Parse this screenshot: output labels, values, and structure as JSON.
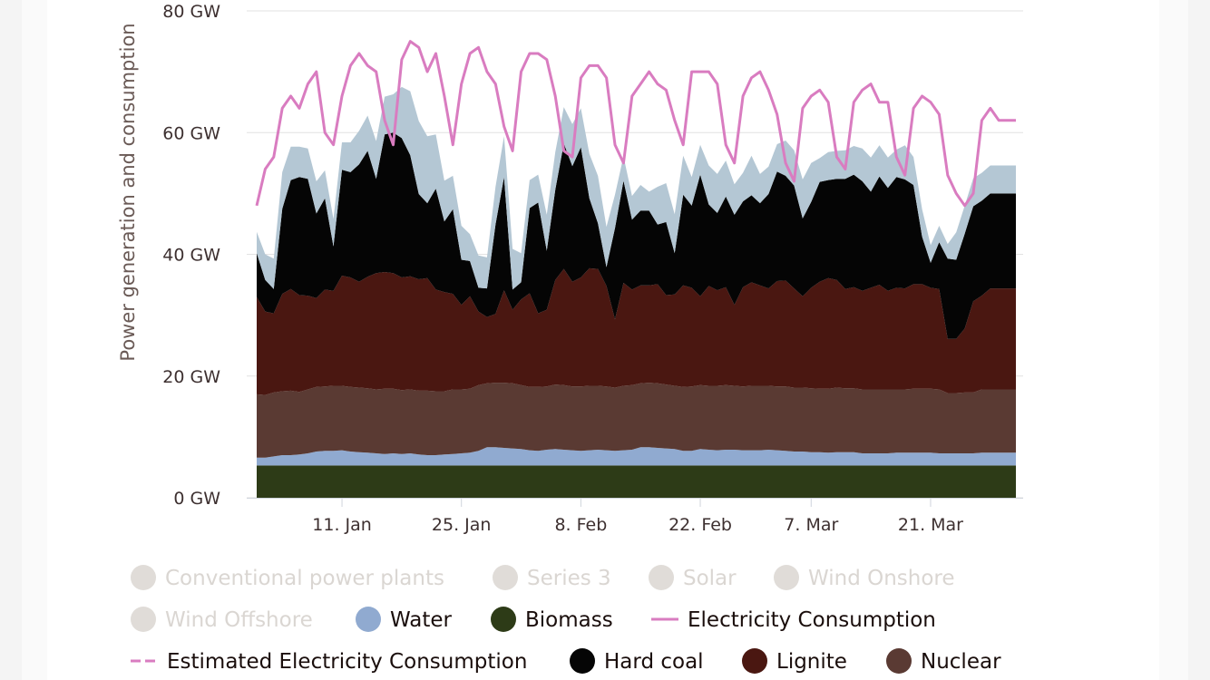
{
  "chart_data": {
    "type": "area",
    "title": "",
    "ylabel": "Power generation and consumption",
    "ylim": [
      0,
      80
    ],
    "yticks": [
      "0 GW",
      "20 GW",
      "40 GW",
      "60 GW",
      "80 GW"
    ],
    "ytick_values": [
      0,
      20,
      40,
      60,
      80
    ],
    "xticks": [
      "11. Jan",
      "25. Jan",
      "8. Feb",
      "22. Feb",
      "7. Mar",
      "21. Mar"
    ],
    "xtick_days": [
      11,
      25,
      39,
      53,
      66,
      80
    ],
    "x_days": [
      1,
      2,
      3,
      4,
      5,
      6,
      7,
      8,
      9,
      10,
      11,
      12,
      13,
      14,
      15,
      16,
      17,
      18,
      19,
      20,
      21,
      22,
      23,
      24,
      25,
      26,
      27,
      28,
      29,
      30,
      31,
      32,
      33,
      34,
      35,
      36,
      37,
      38,
      39,
      40,
      41,
      42,
      43,
      44,
      45,
      46,
      47,
      48,
      49,
      50,
      51,
      52,
      53,
      54,
      55,
      56,
      57,
      58,
      59,
      60,
      61,
      62,
      63,
      64,
      65,
      66,
      67,
      68,
      69,
      70,
      71,
      72,
      73,
      74,
      75,
      76,
      77,
      78,
      79,
      80,
      81,
      82,
      83,
      84,
      85,
      86,
      87,
      88,
      89,
      90
    ],
    "series": [
      {
        "name": "Biomass",
        "color": "#2d3b17",
        "values": [
          5.3,
          5.3,
          5.3,
          5.3,
          5.3,
          5.3,
          5.3,
          5.3,
          5.3,
          5.3,
          5.3,
          5.3,
          5.3,
          5.3,
          5.3,
          5.3,
          5.3,
          5.3,
          5.3,
          5.3,
          5.3,
          5.3,
          5.3,
          5.3,
          5.3,
          5.3,
          5.3,
          5.3,
          5.3,
          5.3,
          5.3,
          5.3,
          5.3,
          5.3,
          5.3,
          5.3,
          5.3,
          5.3,
          5.3,
          5.3,
          5.3,
          5.3,
          5.3,
          5.3,
          5.3,
          5.3,
          5.3,
          5.3,
          5.3,
          5.3,
          5.3,
          5.3,
          5.3,
          5.3,
          5.3,
          5.3,
          5.3,
          5.3,
          5.3,
          5.3,
          5.3,
          5.3,
          5.3,
          5.3,
          5.3,
          5.3,
          5.3,
          5.3,
          5.3,
          5.3,
          5.3,
          5.3,
          5.3,
          5.3,
          5.3,
          5.3,
          5.3,
          5.3,
          5.3,
          5.3,
          5.3,
          5.3,
          5.3,
          5.3,
          5.3,
          5.3,
          5.3,
          5.3,
          5.3,
          5.3
        ]
      },
      {
        "name": "Water",
        "color": "#90aad0",
        "values": [
          1.3,
          1.3,
          1.5,
          1.7,
          1.7,
          1.8,
          2,
          2.3,
          2.4,
          2.4,
          2.5,
          2.3,
          2.2,
          2.1,
          2,
          1.9,
          2,
          1.9,
          2,
          1.8,
          1.7,
          1.7,
          1.8,
          1.9,
          2,
          2.1,
          2.4,
          3,
          3,
          2.9,
          2.8,
          2.7,
          2.5,
          2.4,
          2.6,
          2.7,
          2.6,
          2.5,
          2.4,
          2.5,
          2.6,
          2.5,
          2.4,
          2.5,
          2.6,
          3,
          3,
          2.9,
          2.8,
          2.7,
          2.4,
          2.4,
          2.7,
          2.6,
          2.5,
          2.6,
          2.6,
          2.5,
          2.5,
          2.5,
          2.6,
          2.5,
          2.4,
          2.3,
          2.3,
          2.2,
          2.2,
          2.1,
          2.2,
          2.2,
          2.2,
          2,
          2,
          2,
          2,
          2.1,
          2.1,
          2.1,
          2.1,
          2.1,
          2,
          2,
          2,
          2,
          2,
          2.1,
          2.1,
          2.1,
          2.1,
          2.1
        ]
      },
      {
        "name": "Nuclear",
        "color": "#5a3a33",
        "values": [
          10.4,
          10.3,
          10.5,
          10.5,
          10.6,
          10.3,
          10.5,
          10.6,
          10.6,
          10.7,
          10.6,
          10.6,
          10.6,
          10.6,
          10.5,
          10.7,
          10.6,
          10.5,
          10.5,
          10.5,
          10.6,
          10.5,
          10.4,
          10.6,
          10.5,
          10.5,
          10.8,
          10.5,
          10.6,
          10.7,
          10.7,
          10.5,
          10.4,
          10.5,
          10.4,
          10.6,
          10.6,
          10.5,
          10.6,
          10.6,
          10.5,
          10.5,
          10.4,
          10.6,
          10.6,
          10.5,
          10.6,
          10.6,
          10.5,
          10.4,
          10.5,
          10.6,
          10.5,
          10.5,
          10.6,
          10.6,
          10.5,
          10.5,
          10.6,
          10.6,
          10.5,
          10.5,
          10.6,
          10.5,
          10.5,
          10.5,
          10.4,
          10.5,
          10.6,
          10.5,
          10.5,
          10.5,
          10.5,
          10.5,
          10.5,
          10.4,
          10.4,
          10.5,
          10.5,
          10.5,
          10.5,
          9.9,
          9.9,
          10,
          10,
          10.4,
          10.4,
          10.4,
          10.4,
          10.4
        ]
      },
      {
        "name": "Lignite",
        "color": "#4a1711",
        "values": [
          16,
          13.7,
          13,
          16,
          16.7,
          15.9,
          15.4,
          14.6,
          15.9,
          15.6,
          18.1,
          18,
          17.4,
          18.3,
          19.1,
          19.2,
          19,
          18.5,
          18.6,
          18.3,
          18.5,
          16.7,
          16.3,
          15.7,
          13.9,
          15.2,
          12.1,
          10.9,
          11.3,
          15.2,
          12.1,
          14.1,
          15.4,
          12.1,
          12.6,
          17.2,
          19.1,
          17.2,
          17.9,
          19.3,
          19.2,
          16.5,
          11.2,
          16.9,
          15.7,
          16.1,
          16,
          16.3,
          14.7,
          15,
          16.7,
          16.2,
          14.6,
          16.4,
          15.7,
          16.1,
          13.3,
          16.3,
          17,
          16.5,
          16,
          17.3,
          17.4,
          16.3,
          15,
          16.5,
          17.6,
          18.2,
          17.7,
          16.3,
          16.6,
          16.2,
          16.7,
          17.2,
          16.2,
          16.7,
          16.6,
          17.2,
          17.2,
          16.6,
          16.5,
          8.9,
          8.9,
          10.5,
          15,
          15.4,
          16.6,
          16.6,
          16.6,
          16.6
        ]
      },
      {
        "name": "Hard coal",
        "color": "#050505",
        "values": [
          7.2,
          5.2,
          4,
          14,
          17.9,
          19.4,
          19.2,
          13.9,
          15,
          7.3,
          17.4,
          17.3,
          19.3,
          20.7,
          15.5,
          22.6,
          23.1,
          22.9,
          19.9,
          14,
          12.3,
          16.6,
          11.6,
          13.9,
          7.4,
          5.8,
          3.9,
          4.7,
          14.7,
          18.6,
          3.3,
          2.8,
          14,
          18.2,
          9.7,
          14.8,
          20.6,
          19,
          21.4,
          11.5,
          7.5,
          3.1,
          15,
          16.8,
          11.5,
          12.3,
          12.3,
          9.8,
          12,
          6.8,
          14.9,
          13.5,
          20,
          13.4,
          12.7,
          14.9,
          14.8,
          14.1,
          14.3,
          13.5,
          15.5,
          18,
          17.2,
          16.9,
          12.8,
          14.1,
          16.4,
          16.1,
          16.6,
          18.1,
          18.5,
          18,
          15.8,
          17.8,
          16.9,
          18.2,
          17.9,
          16.3,
          7.8,
          4.1,
          7.7,
          13.2,
          13,
          15.6,
          15.6,
          15.6,
          15.6,
          15.6,
          15.6,
          15.6
        ]
      },
      {
        "name": "Wind Offshore",
        "color": "#b4c7d4",
        "values": [
          3.5,
          4.2,
          5,
          6,
          5.5,
          5,
          5,
          5.3,
          4.6,
          4.5,
          4.5,
          4.9,
          5.5,
          5.8,
          6.2,
          6.2,
          6.3,
          8.4,
          10.5,
          12,
          11,
          8.9,
          6.7,
          5.5,
          5.6,
          4.4,
          5.3,
          5.1,
          6.2,
          6.7,
          6.7,
          4.8,
          4.6,
          4.6,
          5.9,
          6.2,
          6,
          6.9,
          6.4,
          7.3,
          7.8,
          6.6,
          5.5,
          4,
          3.9,
          4.2,
          3.1,
          6.2,
          6.4,
          6.4,
          6.4,
          4.7,
          4.9,
          6.4,
          6.4,
          5.9,
          5,
          4.7,
          6.5,
          4.8,
          4.5,
          4.5,
          5.8,
          5.8,
          6.4,
          6.4,
          3.9,
          4.6,
          4.6,
          4.7,
          4.7,
          5.4,
          5.6,
          5.1,
          5,
          4.5,
          5.6,
          4.6,
          4.5,
          2.9,
          2.7,
          2.4,
          4.5,
          4.6,
          4.6,
          4.6,
          4.6,
          4.6,
          4.6,
          4.6
        ]
      },
      {
        "name": "Electricity Consumption",
        "color": "#d97cc0",
        "values": [
          48,
          54,
          56,
          64,
          66,
          64,
          68,
          70,
          60,
          58,
          66,
          71,
          73,
          71,
          70,
          62,
          58,
          72,
          75,
          74,
          70,
          73,
          66,
          58,
          68,
          73,
          74,
          70,
          68,
          61,
          57,
          70,
          73,
          73,
          72,
          66,
          57,
          56,
          69,
          71,
          71,
          69,
          58,
          55,
          66,
          68,
          70,
          68,
          67,
          62,
          58,
          70,
          70,
          70,
          68,
          58,
          55,
          66,
          69,
          70,
          67,
          63,
          55,
          52,
          64,
          66,
          67,
          65,
          56,
          54,
          65,
          67,
          68,
          65,
          65,
          56,
          53,
          64,
          66,
          65,
          63,
          53,
          50,
          48,
          50,
          62,
          64,
          62,
          62,
          62
        ]
      }
    ]
  },
  "legend": [
    {
      "label": "Conventional power plants",
      "color": "#e0dcd8",
      "shape": "circle",
      "hidden": true
    },
    {
      "label": "Series 3",
      "color": "#e0dcd8",
      "shape": "circle",
      "hidden": true
    },
    {
      "label": "Solar",
      "color": "#e0dcd8",
      "shape": "circle",
      "hidden": true
    },
    {
      "label": "Wind Onshore",
      "color": "#e0dcd8",
      "shape": "circle",
      "hidden": true
    },
    {
      "label": "Wind Offshore",
      "color": "#e0dcd8",
      "shape": "circle",
      "hidden": true
    },
    {
      "label": "Water",
      "color": "#90aad0",
      "shape": "circle",
      "hidden": false
    },
    {
      "label": "Biomass",
      "color": "#2d3b17",
      "shape": "circle",
      "hidden": false
    },
    {
      "label": "Electricity Consumption",
      "color": "#d97cc0",
      "shape": "line",
      "hidden": false
    },
    {
      "label": "Estimated Electricity Consumption",
      "color": "#d97cc0",
      "shape": "dash",
      "hidden": false
    },
    {
      "label": "Hard coal",
      "color": "#050505",
      "shape": "circle",
      "hidden": false
    },
    {
      "label": "Lignite",
      "color": "#4a1711",
      "shape": "circle",
      "hidden": false
    },
    {
      "label": "Nuclear",
      "color": "#5a3a33",
      "shape": "circle",
      "hidden": false
    }
  ]
}
